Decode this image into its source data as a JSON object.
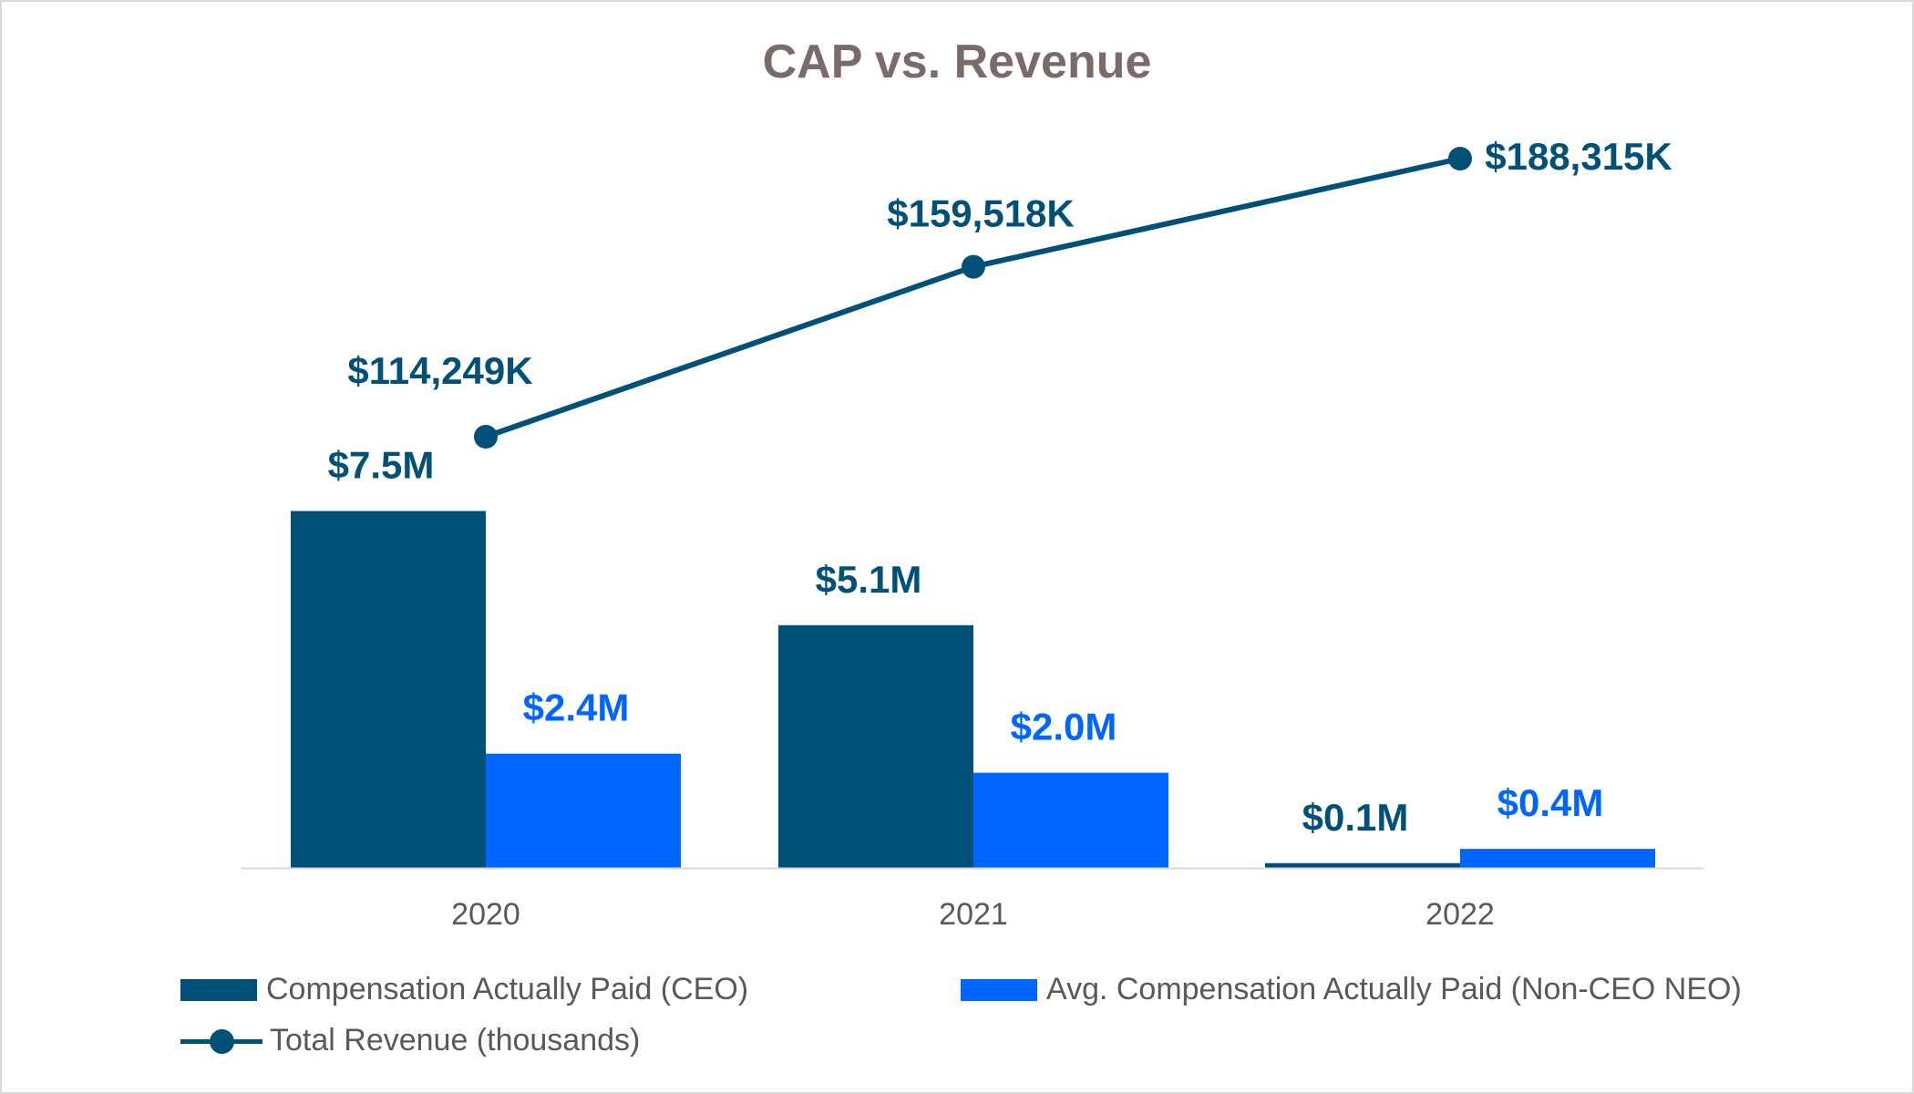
{
  "chart_data": {
    "type": "bar",
    "title": "CAP vs. Revenue",
    "categories": [
      "2020",
      "2021",
      "2022"
    ],
    "series": [
      {
        "name": "Compensation Actually Paid (CEO)",
        "kind": "bar",
        "color": "#005077",
        "values": [
          7.5,
          5.1,
          0.1
        ],
        "labels": [
          "$7.5M",
          "$5.1M",
          "$0.1M"
        ]
      },
      {
        "name": "Avg. Compensation Actually Paid (Non-CEO NEO)",
        "kind": "bar",
        "color": "#0066ff",
        "values": [
          2.4,
          2.0,
          0.4
        ],
        "labels": [
          "$2.4M",
          "$2.0M",
          "$0.4M"
        ]
      },
      {
        "name": "Total Revenue (thousands)",
        "kind": "line",
        "color": "#005077",
        "values": [
          114249,
          159518,
          188315
        ],
        "labels": [
          "$114,249K",
          "$159,518K",
          "$188,315K"
        ]
      }
    ],
    "ylim_bars": [
      0,
      10
    ],
    "ylim_line": [
      0,
      260000
    ],
    "grid": false,
    "legend_position": "bottom"
  }
}
